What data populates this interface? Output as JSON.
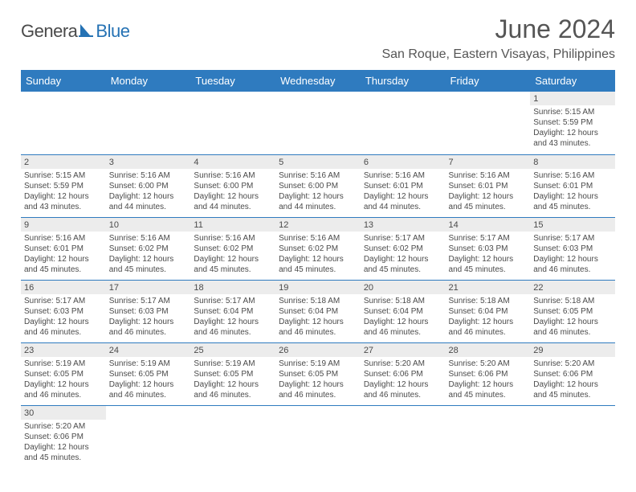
{
  "brand": {
    "part1": "Genera",
    "part2": "Blue"
  },
  "title": "June 2024",
  "location": "San Roque, Eastern Visayas, Philippines",
  "colors": {
    "header_bg": "#2f7bbf",
    "header_fg": "#ffffff",
    "daynum_bg": "#ececec",
    "text": "#4a4a4a",
    "brand_blue": "#2572b4",
    "rule": "#2f7bbf"
  },
  "fonts": {
    "title_pt": 32,
    "location_pt": 16,
    "dayhdr_pt": 13,
    "body_pt": 10
  },
  "weekdays": [
    "Sunday",
    "Monday",
    "Tuesday",
    "Wednesday",
    "Thursday",
    "Friday",
    "Saturday"
  ],
  "grid": {
    "cols": 7,
    "rows": 6
  },
  "days": [
    {
      "num": 1,
      "col": 6,
      "row": 0,
      "sunrise": "5:15 AM",
      "sunset": "5:59 PM",
      "daylight": "12 hours and 43 minutes."
    },
    {
      "num": 2,
      "col": 0,
      "row": 1,
      "sunrise": "5:15 AM",
      "sunset": "5:59 PM",
      "daylight": "12 hours and 43 minutes."
    },
    {
      "num": 3,
      "col": 1,
      "row": 1,
      "sunrise": "5:16 AM",
      "sunset": "6:00 PM",
      "daylight": "12 hours and 44 minutes."
    },
    {
      "num": 4,
      "col": 2,
      "row": 1,
      "sunrise": "5:16 AM",
      "sunset": "6:00 PM",
      "daylight": "12 hours and 44 minutes."
    },
    {
      "num": 5,
      "col": 3,
      "row": 1,
      "sunrise": "5:16 AM",
      "sunset": "6:00 PM",
      "daylight": "12 hours and 44 minutes."
    },
    {
      "num": 6,
      "col": 4,
      "row": 1,
      "sunrise": "5:16 AM",
      "sunset": "6:01 PM",
      "daylight": "12 hours and 44 minutes."
    },
    {
      "num": 7,
      "col": 5,
      "row": 1,
      "sunrise": "5:16 AM",
      "sunset": "6:01 PM",
      "daylight": "12 hours and 45 minutes."
    },
    {
      "num": 8,
      "col": 6,
      "row": 1,
      "sunrise": "5:16 AM",
      "sunset": "6:01 PM",
      "daylight": "12 hours and 45 minutes."
    },
    {
      "num": 9,
      "col": 0,
      "row": 2,
      "sunrise": "5:16 AM",
      "sunset": "6:01 PM",
      "daylight": "12 hours and 45 minutes."
    },
    {
      "num": 10,
      "col": 1,
      "row": 2,
      "sunrise": "5:16 AM",
      "sunset": "6:02 PM",
      "daylight": "12 hours and 45 minutes."
    },
    {
      "num": 11,
      "col": 2,
      "row": 2,
      "sunrise": "5:16 AM",
      "sunset": "6:02 PM",
      "daylight": "12 hours and 45 minutes."
    },
    {
      "num": 12,
      "col": 3,
      "row": 2,
      "sunrise": "5:16 AM",
      "sunset": "6:02 PM",
      "daylight": "12 hours and 45 minutes."
    },
    {
      "num": 13,
      "col": 4,
      "row": 2,
      "sunrise": "5:17 AM",
      "sunset": "6:02 PM",
      "daylight": "12 hours and 45 minutes."
    },
    {
      "num": 14,
      "col": 5,
      "row": 2,
      "sunrise": "5:17 AM",
      "sunset": "6:03 PM",
      "daylight": "12 hours and 45 minutes."
    },
    {
      "num": 15,
      "col": 6,
      "row": 2,
      "sunrise": "5:17 AM",
      "sunset": "6:03 PM",
      "daylight": "12 hours and 46 minutes."
    },
    {
      "num": 16,
      "col": 0,
      "row": 3,
      "sunrise": "5:17 AM",
      "sunset": "6:03 PM",
      "daylight": "12 hours and 46 minutes."
    },
    {
      "num": 17,
      "col": 1,
      "row": 3,
      "sunrise": "5:17 AM",
      "sunset": "6:03 PM",
      "daylight": "12 hours and 46 minutes."
    },
    {
      "num": 18,
      "col": 2,
      "row": 3,
      "sunrise": "5:17 AM",
      "sunset": "6:04 PM",
      "daylight": "12 hours and 46 minutes."
    },
    {
      "num": 19,
      "col": 3,
      "row": 3,
      "sunrise": "5:18 AM",
      "sunset": "6:04 PM",
      "daylight": "12 hours and 46 minutes."
    },
    {
      "num": 20,
      "col": 4,
      "row": 3,
      "sunrise": "5:18 AM",
      "sunset": "6:04 PM",
      "daylight": "12 hours and 46 minutes."
    },
    {
      "num": 21,
      "col": 5,
      "row": 3,
      "sunrise": "5:18 AM",
      "sunset": "6:04 PM",
      "daylight": "12 hours and 46 minutes."
    },
    {
      "num": 22,
      "col": 6,
      "row": 3,
      "sunrise": "5:18 AM",
      "sunset": "6:05 PM",
      "daylight": "12 hours and 46 minutes."
    },
    {
      "num": 23,
      "col": 0,
      "row": 4,
      "sunrise": "5:19 AM",
      "sunset": "6:05 PM",
      "daylight": "12 hours and 46 minutes."
    },
    {
      "num": 24,
      "col": 1,
      "row": 4,
      "sunrise": "5:19 AM",
      "sunset": "6:05 PM",
      "daylight": "12 hours and 46 minutes."
    },
    {
      "num": 25,
      "col": 2,
      "row": 4,
      "sunrise": "5:19 AM",
      "sunset": "6:05 PM",
      "daylight": "12 hours and 46 minutes."
    },
    {
      "num": 26,
      "col": 3,
      "row": 4,
      "sunrise": "5:19 AM",
      "sunset": "6:05 PM",
      "daylight": "12 hours and 46 minutes."
    },
    {
      "num": 27,
      "col": 4,
      "row": 4,
      "sunrise": "5:20 AM",
      "sunset": "6:06 PM",
      "daylight": "12 hours and 46 minutes."
    },
    {
      "num": 28,
      "col": 5,
      "row": 4,
      "sunrise": "5:20 AM",
      "sunset": "6:06 PM",
      "daylight": "12 hours and 45 minutes."
    },
    {
      "num": 29,
      "col": 6,
      "row": 4,
      "sunrise": "5:20 AM",
      "sunset": "6:06 PM",
      "daylight": "12 hours and 45 minutes."
    },
    {
      "num": 30,
      "col": 0,
      "row": 5,
      "sunrise": "5:20 AM",
      "sunset": "6:06 PM",
      "daylight": "12 hours and 45 minutes."
    }
  ],
  "labels": {
    "sunrise": "Sunrise:",
    "sunset": "Sunset:",
    "daylight": "Daylight:"
  }
}
